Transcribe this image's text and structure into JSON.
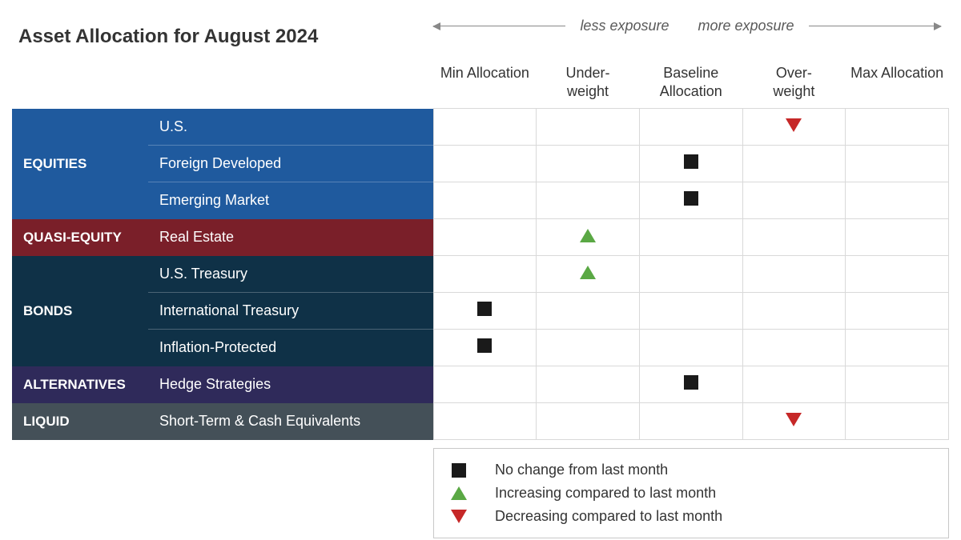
{
  "title": "Asset Allocation for August 2024",
  "exposure": {
    "less": "less exposure",
    "more": "more exposure"
  },
  "levels": [
    "Min Allocation",
    "Under-weight",
    "Baseline Allocation",
    "Over-weight",
    "Max Allocation"
  ],
  "colors": {
    "equities": "#1f5a9e",
    "quasi_equity": "#7a1f29",
    "bonds": "#0f3147",
    "alternatives": "#2f2a5a",
    "liquid": "#445058",
    "square": "#1a1a1a",
    "up": "#5aa844",
    "down": "#c62828",
    "border": "#d9d9d9",
    "text": "#333333"
  },
  "groups": [
    {
      "key": "equities",
      "label": "EQUITIES",
      "color": "#1f5a9e",
      "rows": [
        {
          "label": "U.S.",
          "level": 3,
          "marker": "down"
        },
        {
          "label": "Foreign Developed",
          "level": 2,
          "marker": "square"
        },
        {
          "label": "Emerging Market",
          "level": 2,
          "marker": "square"
        }
      ]
    },
    {
      "key": "quasi",
      "label": "QUASI-EQUITY",
      "color": "#7a1f29",
      "rows": [
        {
          "label": "Real Estate",
          "level": 1,
          "marker": "up"
        }
      ]
    },
    {
      "key": "bonds",
      "label": "BONDS",
      "color": "#0f3147",
      "rows": [
        {
          "label": "U.S. Treasury",
          "level": 1,
          "marker": "up"
        },
        {
          "label": "International Treasury",
          "level": 0,
          "marker": "square"
        },
        {
          "label": "Inflation-Protected",
          "level": 0,
          "marker": "square"
        }
      ]
    },
    {
      "key": "alt",
      "label": "ALTERNATIVES",
      "color": "#2f2a5a",
      "rows": [
        {
          "label": "Hedge Strategies",
          "level": 2,
          "marker": "square"
        }
      ]
    },
    {
      "key": "liquid",
      "label": "LIQUID",
      "color": "#445058",
      "rows": [
        {
          "label": "Short-Term & Cash Equivalents",
          "level": 3,
          "marker": "down"
        }
      ]
    }
  ],
  "legend": {
    "square": "No change from last month",
    "up": "Increasing compared to last month",
    "down": "Decreasing compared to last month"
  }
}
